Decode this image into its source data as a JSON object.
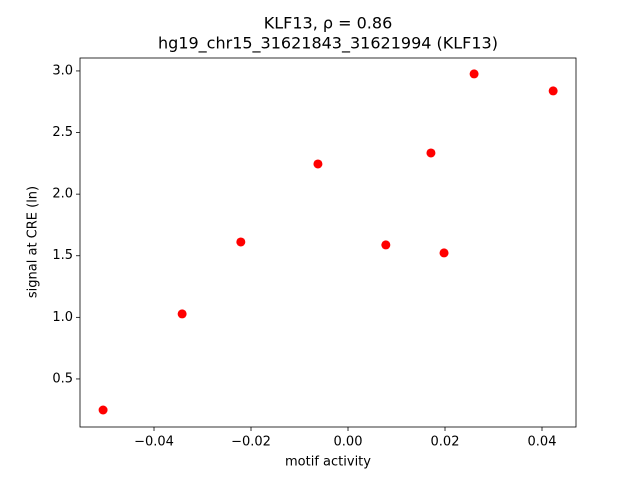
{
  "chart_data": {
    "type": "scatter",
    "title": "KLF13, ρ = 0.86",
    "subtitle": "hg19_chr15_31621843_31621994 (KLF13)",
    "x_label": "motif activity",
    "y_label": "signal at CRE (ln)",
    "color": "#ff0000",
    "x": [
      -0.0505,
      -0.0342,
      -0.0221,
      -0.0062,
      0.0078,
      0.0171,
      0.0198,
      0.026,
      0.0423
    ],
    "values": [
      0.248,
      1.028,
      1.612,
      2.245,
      1.588,
      2.334,
      1.523,
      2.976,
      2.838
    ],
    "xlim": [
      -0.05526,
      0.04701
    ],
    "ylim": [
      0.11,
      3.105
    ],
    "xticks": [
      {
        "value": -0.04,
        "label": "−0.04"
      },
      {
        "value": -0.02,
        "label": "−0.02"
      },
      {
        "value": 0,
        "label": "0.00"
      },
      0.02,
      0.04
    ],
    "yticks": [
      0.5,
      {
        "value": 1,
        "label": "1.0"
      },
      1.5,
      {
        "value": 2,
        "label": "2.0"
      },
      2.5,
      {
        "value": 3,
        "label": "3.0"
      }
    ],
    "grid": false
  }
}
